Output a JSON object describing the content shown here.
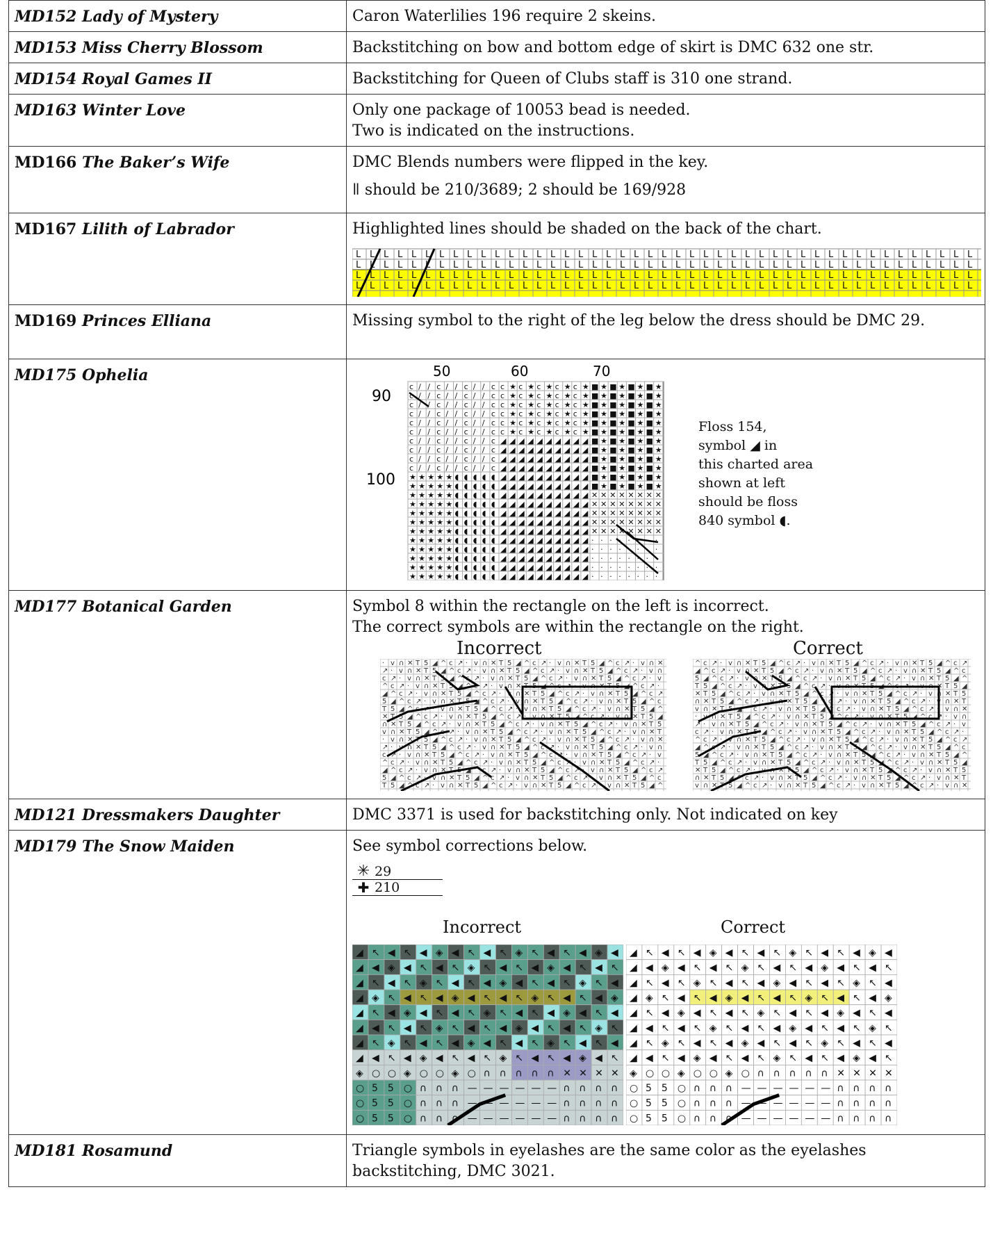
{
  "rows": [
    {
      "title": "MD152 Lady of Mystery",
      "lines": [
        "Caron Waterlilies 196 require 2 skeins."
      ]
    },
    {
      "title": "MD153 Miss Cherry Blossom",
      "lines": [
        "Backstitching on bow and bottom edge of skirt is DMC 632 one str."
      ]
    },
    {
      "title": "MD154 Royal Games II",
      "lines": [
        "Backstitching for Queen of Clubs staff is 310 one strand."
      ]
    },
    {
      "title": "MD163 Winter Love",
      "lines": [
        "Only one package of 10053 bead is needed.",
        "Two is indicated on the instructions."
      ]
    },
    {
      "title_code": "MD166",
      "title_name": "The Baker’s Wife",
      "lines": [
        "DMC Blends numbers were flipped in the key.",
        "ǁ should be 210/3689; 2 should be 169/928"
      ]
    },
    {
      "title_code": "MD167",
      "title_name": "Lilith of Labrador",
      "lines": [
        "Highlighted lines should be shaded on the back of the chart."
      ]
    },
    {
      "title_code": "MD169",
      "title_name": "Princes Elliana",
      "lines": [
        "Missing symbol to the right of the leg below the dress should be DMC 29."
      ]
    },
    {
      "title": "MD175 Ophelia",
      "chart_cols": [
        "50",
        "60",
        "70"
      ],
      "chart_rows": [
        "90",
        "100"
      ],
      "note": [
        "Floss 154,",
        "symbol ◢ in",
        "this charted area",
        "shown at left",
        "should be floss",
        "840 symbol ◖."
      ]
    },
    {
      "title": "MD177 Botanical Garden",
      "lines": [
        "Symbol 8 within the rectangle on the left is incorrect.",
        "The correct symbols are within the rectangle on the right."
      ],
      "captions": [
        "Incorrect",
        "Correct"
      ]
    },
    {
      "title": "MD121 Dressmakers Daughter",
      "lines": [
        "DMC 3371 is used for backstitching only. Not indicated on key"
      ]
    },
    {
      "title": "MD179 The Snow Maiden",
      "lines": [
        "See symbol corrections below."
      ],
      "legend": [
        {
          "symbol": "✳",
          "value": "29"
        },
        {
          "symbol": "✚",
          "value": "210"
        }
      ],
      "captions": [
        "Incorrect",
        "Correct"
      ]
    },
    {
      "title": "MD181 Rosamund",
      "lines": [
        "Triangle symbols in eyelashes are the same color as the eyelashes backstitching, DMC 3021."
      ]
    }
  ]
}
